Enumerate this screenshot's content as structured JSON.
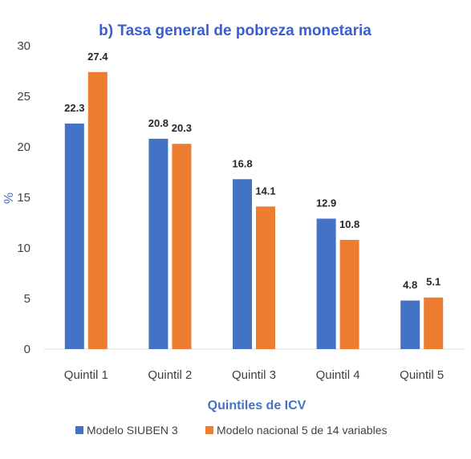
{
  "chart_data": {
    "type": "bar",
    "title": "b) Tasa general de pobreza monetaria",
    "xlabel": "Quintiles de ICV",
    "ylabel": "%",
    "categories": [
      "Quintil 1",
      "Quintil 2",
      "Quintil 3",
      "Quintil 4",
      "Quintil 5"
    ],
    "series": [
      {
        "name": "Modelo SIUBEN 3",
        "values": [
          22.3,
          20.8,
          16.8,
          12.9,
          4.8
        ],
        "color": "#4472c4"
      },
      {
        "name": "Modelo nacional 5 de 14 variables",
        "values": [
          27.4,
          20.3,
          14.1,
          10.8,
          5.1
        ],
        "color": "#ed7d31"
      }
    ],
    "ylim": [
      0,
      30
    ],
    "yticks": [
      0,
      5,
      10,
      15,
      20,
      25,
      30
    ],
    "grid": false,
    "legend_position": "bottom"
  }
}
